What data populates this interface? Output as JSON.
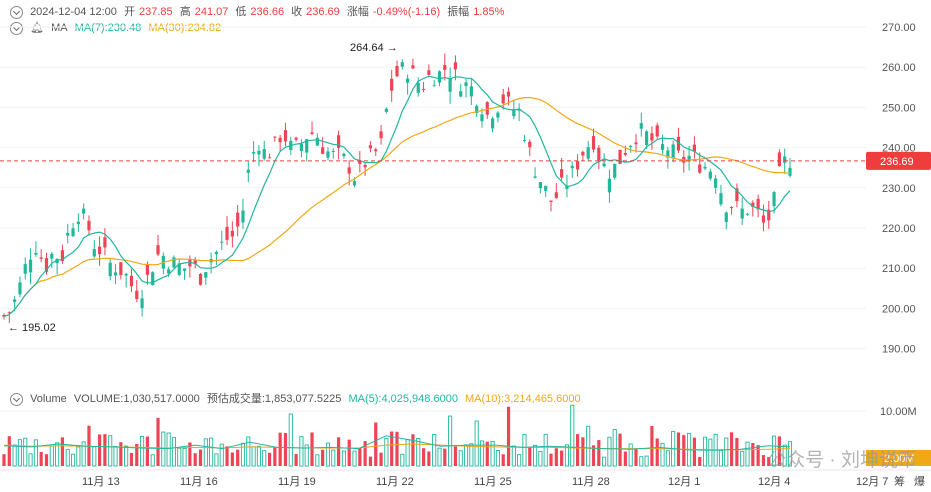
{
  "header": {
    "datetime": "2024-12-04 12:00",
    "open_label": "开",
    "open": "237.85",
    "high_label": "高",
    "high": "241.07",
    "low_label": "低",
    "low": "236.66",
    "close_label": "收",
    "close": "236.69",
    "change_label": "涨幅",
    "change": "-0.49%(-1.16)",
    "amp_label": "振幅",
    "amp": "1.85%"
  },
  "ma_header": {
    "label": "MA",
    "ma7": "MA(7):230.48",
    "ma30": "MA(30):234.82"
  },
  "vol_header": {
    "label": "Volume",
    "volume": "VOLUME:1,030,517.0000",
    "est": "预估成交量:1,853,077.5225",
    "ma5": "MA(5):4,025,948.6000",
    "ma10": "MA(10):3,214,465.6000"
  },
  "watermark": "公众号 · 刘坤说币",
  "colors": {
    "up": "#1fb89a",
    "down": "#ef4455",
    "ma7": "#20b7a0",
    "ma30": "#f0a817",
    "price_tag": "#ef3d3d"
  },
  "chart_data": {
    "type": "candlestick",
    "y_ticks": [
      "270.00",
      "260.00",
      "250.00",
      "240.00",
      "230.00",
      "220.00",
      "210.00",
      "200.00",
      "190.00"
    ],
    "ylim": [
      185,
      275
    ],
    "current_price": "236.69",
    "annotations": {
      "high": "264.64",
      "low": "195.02"
    },
    "x_ticks": [
      "11月 13",
      "11月 16",
      "11月 19",
      "11月 22",
      "11月 25",
      "11月 28",
      "12月 1",
      "12月 4",
      "12月 7"
    ],
    "x_extra": [
      "筹",
      "爆"
    ],
    "volume_tick": "10.00M",
    "volume_tick2": "2.00M",
    "points": 149,
    "close_path": [
      [
        0,
        198
      ],
      [
        6,
        200
      ],
      [
        12,
        206
      ],
      [
        18,
        213
      ],
      [
        24,
        216
      ],
      [
        30,
        210
      ],
      [
        36,
        214
      ],
      [
        42,
        212
      ],
      [
        48,
        220
      ],
      [
        54,
        224
      ],
      [
        60,
        222
      ],
      [
        66,
        216
      ],
      [
        72,
        214
      ],
      [
        78,
        211
      ],
      [
        84,
        210
      ],
      [
        90,
        208
      ],
      [
        96,
        204
      ],
      [
        102,
        205
      ],
      [
        108,
        210
      ],
      [
        114,
        214
      ],
      [
        120,
        212
      ],
      [
        126,
        211
      ],
      [
        132,
        210
      ],
      [
        138,
        211
      ],
      [
        144,
        208
      ],
      [
        150,
        212
      ],
      [
        156,
        214
      ],
      [
        162,
        217
      ],
      [
        168,
        218
      ],
      [
        174,
        222
      ],
      [
        180,
        236
      ],
      [
        186,
        242
      ],
      [
        192,
        238
      ],
      [
        198,
        240
      ],
      [
        204,
        244
      ],
      [
        210,
        240
      ],
      [
        216,
        240
      ],
      [
        222,
        243
      ],
      [
        228,
        244
      ],
      [
        234,
        240
      ],
      [
        240,
        238
      ],
      [
        246,
        238
      ],
      [
        252,
        236
      ],
      [
        258,
        232
      ],
      [
        264,
        236
      ],
      [
        270,
        238
      ],
      [
        276,
        240
      ],
      [
        282,
        253
      ],
      [
        288,
        258
      ],
      [
        294,
        260
      ],
      [
        300,
        258
      ],
      [
        306,
        255
      ],
      [
        312,
        258
      ],
      [
        318,
        258
      ],
      [
        324,
        260
      ],
      [
        330,
        258
      ],
      [
        336,
        256
      ],
      [
        342,
        255
      ],
      [
        348,
        252
      ],
      [
        354,
        248
      ],
      [
        360,
        250
      ],
      [
        366,
        252
      ],
      [
        372,
        250
      ],
      [
        378,
        249
      ],
      [
        384,
        240
      ],
      [
        390,
        234
      ],
      [
        396,
        230
      ],
      [
        402,
        226
      ],
      [
        408,
        230
      ],
      [
        414,
        232
      ],
      [
        420,
        236
      ],
      [
        426,
        240
      ],
      [
        432,
        242
      ],
      [
        438,
        236
      ],
      [
        444,
        234
      ],
      [
        450,
        236
      ],
      [
        456,
        240
      ],
      [
        462,
        243
      ],
      [
        468,
        244
      ],
      [
        474,
        242
      ],
      [
        480,
        240
      ],
      [
        486,
        240
      ],
      [
        492,
        238
      ],
      [
        498,
        237
      ],
      [
        504,
        238
      ],
      [
        510,
        236
      ],
      [
        516,
        235
      ],
      [
        522,
        234
      ],
      [
        528,
        226
      ],
      [
        534,
        226
      ],
      [
        540,
        224
      ],
      [
        546,
        225
      ],
      [
        552,
        224
      ],
      [
        558,
        220
      ],
      [
        564,
        226
      ],
      [
        570,
        236
      ],
      [
        576,
        237
      ]
    ]
  },
  "volume_data": {
    "ma5_path": [
      [
        0,
        3.5
      ],
      [
        20,
        3.3
      ],
      [
        40,
        3.8
      ],
      [
        60,
        3.4
      ],
      [
        80,
        3.3
      ],
      [
        100,
        3.1
      ],
      [
        120,
        3.0
      ],
      [
        140,
        3.6
      ],
      [
        160,
        3.0
      ],
      [
        180,
        4.1
      ],
      [
        200,
        3.2
      ],
      [
        220,
        3.1
      ],
      [
        240,
        3.2
      ],
      [
        260,
        3.0
      ],
      [
        280,
        5.2
      ],
      [
        300,
        4.4
      ],
      [
        320,
        3.4
      ],
      [
        340,
        3.6
      ],
      [
        360,
        3.6
      ],
      [
        380,
        3.2
      ],
      [
        400,
        3.4
      ],
      [
        420,
        3.2
      ],
      [
        440,
        3.0
      ],
      [
        460,
        2.9
      ],
      [
        480,
        3.2
      ],
      [
        500,
        2.8
      ],
      [
        520,
        2.7
      ],
      [
        540,
        2.9
      ],
      [
        560,
        3.5
      ],
      [
        576,
        3.3
      ]
    ],
    "ma10_path": [
      [
        0,
        3.6
      ],
      [
        20,
        3.4
      ],
      [
        40,
        3.5
      ],
      [
        60,
        3.4
      ],
      [
        80,
        3.3
      ],
      [
        100,
        3.2
      ],
      [
        120,
        3.1
      ],
      [
        140,
        3.2
      ],
      [
        160,
        3.1
      ],
      [
        180,
        3.3
      ],
      [
        200,
        3.2
      ],
      [
        220,
        3.1
      ],
      [
        240,
        3.1
      ],
      [
        260,
        3.1
      ],
      [
        280,
        3.6
      ],
      [
        300,
        3.8
      ],
      [
        320,
        3.6
      ],
      [
        340,
        3.4
      ],
      [
        360,
        3.3
      ],
      [
        380,
        3.2
      ],
      [
        400,
        3.2
      ],
      [
        420,
        3.1
      ],
      [
        440,
        3.0
      ],
      [
        460,
        3.0
      ],
      [
        480,
        3.0
      ],
      [
        500,
        2.9
      ],
      [
        520,
        2.8
      ],
      [
        540,
        2.8
      ],
      [
        560,
        2.9
      ],
      [
        576,
        3.0
      ]
    ]
  }
}
